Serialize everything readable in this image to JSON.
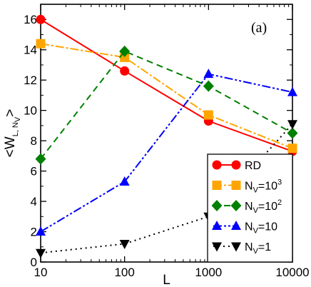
{
  "chart_data": {
    "type": "line",
    "panel_label": "(a)",
    "xlabel": "L",
    "ylabel": {
      "main": "<W",
      "sub": "L, N",
      "subsub": "V",
      "close": ">"
    },
    "x_scale": "log",
    "xlim": [
      10,
      10000
    ],
    "ylim": [
      0,
      17
    ],
    "x_ticks": [
      10,
      100,
      1000,
      10000
    ],
    "x_tick_labels": [
      "10",
      "100",
      "1000",
      "10000"
    ],
    "y_ticks": [
      0,
      2,
      4,
      6,
      8,
      10,
      12,
      14,
      16
    ],
    "y_tick_labels": [
      "0",
      "2",
      "4",
      "6",
      "8",
      "10",
      "12",
      "14",
      "16"
    ],
    "x": [
      10,
      100,
      1000,
      10000
    ],
    "legend_position": "bottom-right",
    "series": [
      {
        "key": "rd",
        "legend": {
          "main": "RD"
        },
        "color": "#ff0000",
        "dash": "",
        "marker": "circle",
        "values": [
          16.0,
          12.6,
          9.3,
          7.3
        ]
      },
      {
        "key": "nv1000",
        "legend": {
          "main": "N",
          "sub": "V",
          "rest": "=10",
          "sup": "3"
        },
        "color": "#ffa500",
        "dash": "12,3,3,3",
        "marker": "square",
        "values": [
          14.4,
          13.5,
          9.7,
          7.5
        ]
      },
      {
        "key": "nv100",
        "legend": {
          "main": "N",
          "sub": "V",
          "rest": "=10",
          "sup": "2"
        },
        "color": "#008000",
        "dash": "9,6",
        "marker": "diamond",
        "values": [
          6.8,
          13.9,
          11.6,
          8.5
        ]
      },
      {
        "key": "nv10",
        "legend": {
          "main": "N",
          "sub": "V",
          "rest": "=10"
        },
        "color": "#0000ff",
        "dash": "12,3,3,3,3,3",
        "marker": "triangle-up",
        "values": [
          2.0,
          5.3,
          12.4,
          11.2
        ]
      },
      {
        "key": "nv1",
        "legend": {
          "main": "N",
          "sub": "V",
          "rest": "=1"
        },
        "color": "#000000",
        "dash": "2,5",
        "marker": "triangle-down",
        "values": [
          0.6,
          1.2,
          3.0,
          9.1
        ]
      }
    ]
  }
}
